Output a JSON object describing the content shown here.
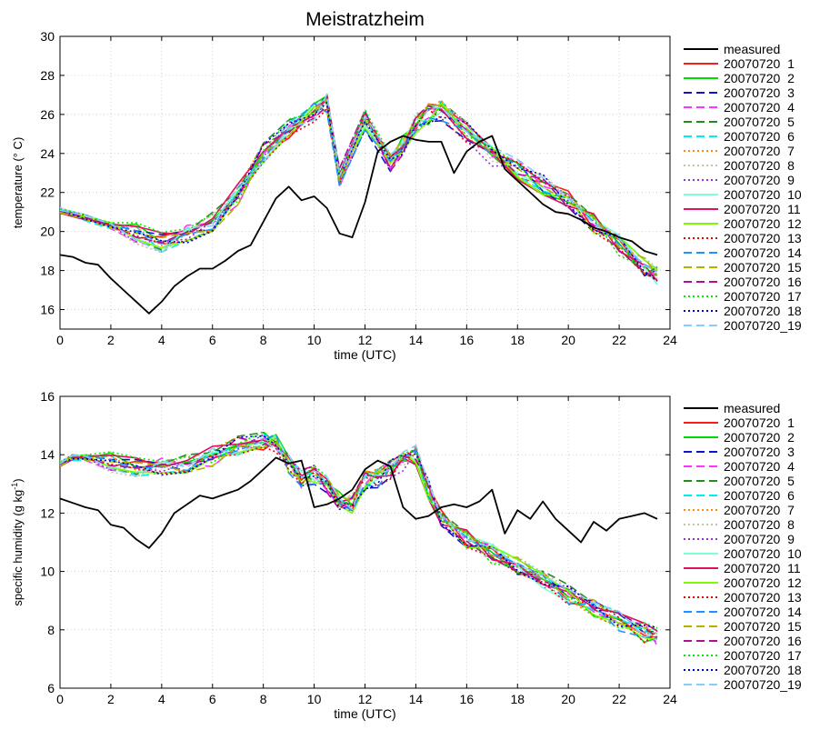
{
  "page_title": "Meistratzheim",
  "chart_data": [
    {
      "type": "line",
      "title": "Meistratzheim",
      "xlabel": "time (UTC)",
      "ylabel": "temperature (° C)",
      "xlim": [
        0,
        24
      ],
      "ylim": [
        15,
        30
      ],
      "xticks": [
        0,
        2,
        4,
        6,
        8,
        10,
        12,
        14,
        16,
        18,
        20,
        22,
        24
      ],
      "yticks": [
        16,
        18,
        20,
        22,
        24,
        26,
        28,
        30
      ],
      "grid": true,
      "legend_position": "right",
      "measured": {
        "name": "measured",
        "color": "#000000",
        "x": [
          0,
          0.5,
          1,
          1.5,
          2,
          2.5,
          3,
          3.5,
          4,
          4.5,
          5,
          5.5,
          6,
          6.5,
          7,
          7.5,
          8,
          8.5,
          9,
          9.5,
          10,
          10.5,
          11,
          11.5,
          12,
          12.5,
          13,
          13.5,
          14,
          14.5,
          15,
          15.5,
          16,
          16.5,
          17,
          17.5,
          18,
          18.5,
          19,
          19.5,
          20,
          20.5,
          21,
          21.5,
          22,
          22.5,
          23,
          23.5
        ],
        "values": [
          18.8,
          18.7,
          18.4,
          18.3,
          17.6,
          17.0,
          16.4,
          15.8,
          16.4,
          17.2,
          17.7,
          18.1,
          18.1,
          18.5,
          19.0,
          19.3,
          20.5,
          21.7,
          22.3,
          21.6,
          21.8,
          21.2,
          19.9,
          19.7,
          21.5,
          24.1,
          24.6,
          24.9,
          24.7,
          24.6,
          24.6,
          23.0,
          24.1,
          24.6,
          24.9,
          23.2,
          22.6,
          22.0,
          21.4,
          21.0,
          20.9,
          20.6,
          20.2,
          20.0,
          19.7,
          19.5,
          19.0,
          18.8
        ]
      },
      "ensemble_x": [
        0,
        1,
        2,
        3,
        4,
        5,
        6,
        7,
        8,
        9,
        10,
        10.5,
        11,
        12,
        13,
        13.5,
        14,
        14.5,
        15,
        16,
        17,
        18,
        19,
        20,
        21,
        22,
        23,
        23.5
      ],
      "ensemble_base": [
        21.1,
        20.7,
        20.3,
        19.9,
        19.4,
        19.8,
        20.5,
        21.9,
        24.0,
        25.3,
        26.1,
        26.6,
        22.8,
        25.7,
        23.4,
        24.4,
        25.5,
        26.0,
        26.2,
        25.1,
        23.9,
        23.2,
        22.4,
        21.6,
        20.4,
        19.3,
        18.2,
        17.7
      ],
      "series": [
        {
          "name": "20070720  1",
          "color": "#ff1a1a",
          "dash": "solid"
        },
        {
          "name": "20070720  2",
          "color": "#00dd00",
          "dash": "solid"
        },
        {
          "name": "20070720  3",
          "color": "#1111cc",
          "dash": "long"
        },
        {
          "name": "20070720  4",
          "color": "#ff33ff",
          "dash": "long"
        },
        {
          "name": "20070720  5",
          "color": "#228b22",
          "dash": "long"
        },
        {
          "name": "20070720  6",
          "color": "#00eeee",
          "dash": "long"
        },
        {
          "name": "20070720  7",
          "color": "#ff8c00",
          "dash": "dot"
        },
        {
          "name": "20070720  8",
          "color": "#c8c0a0",
          "dash": "dot"
        },
        {
          "name": "20070720  9",
          "color": "#9932cc",
          "dash": "dot"
        },
        {
          "name": "20070720  10",
          "color": "#7fffd4",
          "dash": "solid"
        },
        {
          "name": "20070720  11",
          "color": "#e0115f",
          "dash": "solid"
        },
        {
          "name": "20070720  12",
          "color": "#7cfc00",
          "dash": "solid"
        },
        {
          "name": "20070720  13",
          "color": "#ee0000",
          "dash": "dot"
        },
        {
          "name": "20070720  14",
          "color": "#1e90ff",
          "dash": "long"
        },
        {
          "name": "20070720  15",
          "color": "#b8b000",
          "dash": "long"
        },
        {
          "name": "20070720  16",
          "color": "#b01090",
          "dash": "long"
        },
        {
          "name": "20070720  17",
          "color": "#00ee00",
          "dash": "dot"
        },
        {
          "name": "20070720  18",
          "color": "#0000cd",
          "dash": "dot"
        },
        {
          "name": "20070720_19",
          "color": "#87cefa",
          "dash": "long"
        }
      ]
    },
    {
      "type": "line",
      "title": "",
      "xlabel": "time (UTC)",
      "ylabel": "specific humidity (g kg-1)",
      "ylabel_parts": {
        "main": "specific humidity (g kg",
        "sup": "-1",
        "end": ")"
      },
      "xlim": [
        0,
        24
      ],
      "ylim": [
        6,
        16
      ],
      "xticks": [
        0,
        2,
        4,
        6,
        8,
        10,
        12,
        14,
        16,
        18,
        20,
        22,
        24
      ],
      "yticks": [
        6,
        8,
        10,
        12,
        14,
        16
      ],
      "grid": true,
      "legend_position": "right",
      "measured": {
        "name": "measured",
        "color": "#000000",
        "x": [
          0,
          0.5,
          1,
          1.5,
          2,
          2.5,
          3,
          3.5,
          4,
          4.5,
          5,
          5.5,
          6,
          6.5,
          7,
          7.5,
          8,
          8.5,
          9,
          9.5,
          10,
          10.5,
          11,
          11.5,
          12,
          12.5,
          13,
          13.5,
          14,
          14.5,
          15,
          15.5,
          16,
          16.5,
          17,
          17.5,
          18,
          18.5,
          19,
          19.5,
          20,
          20.5,
          21,
          21.5,
          22,
          22.5,
          23,
          23.5
        ],
        "values": [
          12.5,
          12.35,
          12.2,
          12.1,
          11.6,
          11.5,
          11.1,
          10.8,
          11.3,
          12.0,
          12.3,
          12.6,
          12.5,
          12.65,
          12.8,
          13.1,
          13.5,
          13.9,
          13.7,
          13.8,
          12.2,
          12.3,
          12.5,
          12.8,
          13.5,
          13.8,
          13.6,
          12.2,
          11.8,
          11.9,
          12.2,
          12.3,
          12.2,
          12.4,
          12.8,
          11.3,
          12.1,
          11.8,
          12.4,
          11.8,
          11.4,
          11.0,
          11.7,
          11.4,
          11.8,
          11.9,
          12.0,
          11.8
        ]
      },
      "ensemble_x": [
        0,
        0.5,
        1,
        2,
        3,
        4,
        5,
        6,
        7,
        8,
        8.5,
        9,
        9.5,
        10,
        10.5,
        11,
        11.5,
        12,
        12.5,
        13,
        13.5,
        14,
        14.5,
        15,
        16,
        17,
        18,
        19,
        20,
        21,
        22,
        23,
        23.5
      ],
      "ensemble_base": [
        13.7,
        13.9,
        13.9,
        13.75,
        13.55,
        13.55,
        13.7,
        13.95,
        14.3,
        14.5,
        14.4,
        13.7,
        13.2,
        13.3,
        12.9,
        12.4,
        12.3,
        13.1,
        13.2,
        13.5,
        13.8,
        14.0,
        12.8,
        11.8,
        11.1,
        10.6,
        10.2,
        9.7,
        9.2,
        8.8,
        8.3,
        7.9,
        7.8
      ],
      "series": [
        {
          "name": "20070720  1",
          "color": "#ff1a1a",
          "dash": "solid"
        },
        {
          "name": "20070720  2",
          "color": "#00dd00",
          "dash": "solid"
        },
        {
          "name": "20070720  3",
          "color": "#1111cc",
          "dash": "long"
        },
        {
          "name": "20070720  4",
          "color": "#ff33ff",
          "dash": "long"
        },
        {
          "name": "20070720  5",
          "color": "#228b22",
          "dash": "long"
        },
        {
          "name": "20070720  6",
          "color": "#00eeee",
          "dash": "long"
        },
        {
          "name": "20070720  7",
          "color": "#ff8c00",
          "dash": "dot"
        },
        {
          "name": "20070720  8",
          "color": "#c8c0a0",
          "dash": "dot"
        },
        {
          "name": "20070720  9",
          "color": "#9932cc",
          "dash": "dot"
        },
        {
          "name": "20070720  10",
          "color": "#7fffd4",
          "dash": "solid"
        },
        {
          "name": "20070720  11",
          "color": "#e0115f",
          "dash": "solid"
        },
        {
          "name": "20070720  12",
          "color": "#7cfc00",
          "dash": "solid"
        },
        {
          "name": "20070720  13",
          "color": "#ee0000",
          "dash": "dot"
        },
        {
          "name": "20070720  14",
          "color": "#1e90ff",
          "dash": "long"
        },
        {
          "name": "20070720  15",
          "color": "#b8b000",
          "dash": "long"
        },
        {
          "name": "20070720  16",
          "color": "#b01090",
          "dash": "long"
        },
        {
          "name": "20070720  17",
          "color": "#00ee00",
          "dash": "dot"
        },
        {
          "name": "20070720  18",
          "color": "#0000cd",
          "dash": "dot"
        },
        {
          "name": "20070720_19",
          "color": "#87cefa",
          "dash": "long"
        }
      ]
    }
  ]
}
